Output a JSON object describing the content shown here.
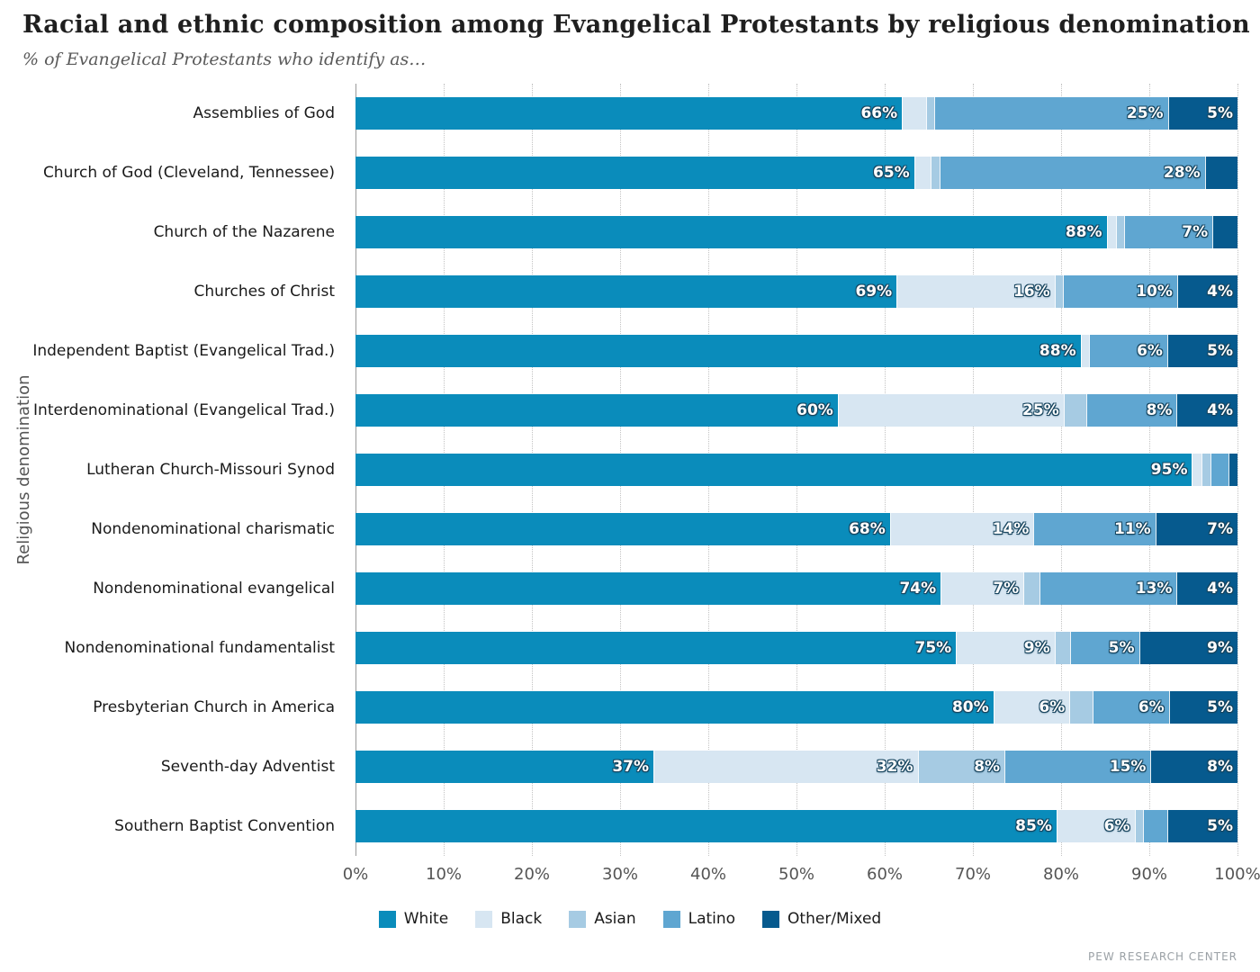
{
  "header": {
    "title": "Racial and ethnic composition among Evangelical Protestants by religious denomination (2",
    "subtitle": "% of Evangelical Protestants who identify as…"
  },
  "credit": "PEW RESEARCH CENTER",
  "chart_data": {
    "type": "bar",
    "orientation": "horizontal",
    "stacked": true,
    "title": "Racial and ethnic composition among Evangelical Protestants by religious denomination (2",
    "subtitle": "% of Evangelical Protestants who identify as…",
    "xlabel": "",
    "ylabel": "Religious denomination",
    "xlim": [
      0,
      100
    ],
    "x_tick_labels": [
      "0%",
      "10%",
      "20%",
      "30%",
      "40%",
      "50%",
      "60%",
      "70%",
      "80%",
      "90%",
      "100%"
    ],
    "grid": "vertical-dotted",
    "legend_position": "bottom",
    "categories": [
      "Assemblies of God",
      "Church of God (Cleveland, Tennessee)",
      "Church of the Nazarene",
      "Churches of Christ",
      "Independent Baptist (Evangelical Trad.)",
      "Interdenominational (Evangelical Trad.)",
      "Lutheran Church-Missouri Synod",
      "Nondenominational charismatic",
      "Nondenominational evangelical",
      "Nondenominational fundamentalist",
      "Presbyterian Church in America",
      "Seventh-day Adventist",
      "Southern Baptist Convention"
    ],
    "series": [
      {
        "name": "White",
        "color": "#0a8cbb",
        "values": [
          66,
          65,
          88,
          69,
          88,
          60,
          95,
          68,
          74,
          75,
          80,
          37,
          85
        ]
      },
      {
        "name": "Black",
        "color": "#d7e6f2",
        "values": [
          3,
          2,
          1,
          16,
          1,
          25,
          1,
          14,
          7,
          9,
          6,
          32,
          6
        ]
      },
      {
        "name": "Asian",
        "color": "#a6cbe3",
        "values": [
          1,
          1,
          1,
          1,
          0,
          3,
          1,
          0,
          2,
          2,
          3,
          8,
          1
        ]
      },
      {
        "name": "Latino",
        "color": "#5fa6d1",
        "values": [
          25,
          28,
          7,
          10,
          6,
          8,
          2,
          11,
          13,
          5,
          6,
          15,
          3
        ]
      },
      {
        "name": "Other/Mixed",
        "color": "#065a8e",
        "values": [
          5,
          4,
          3,
          4,
          5,
          4,
          1,
          7,
          4,
          9,
          5,
          8,
          5
        ]
      }
    ],
    "bar_labels": [
      [
        "66%",
        "",
        "",
        "25%",
        "5%"
      ],
      [
        "65%",
        "",
        "",
        "28%",
        ""
      ],
      [
        "88%",
        "",
        "",
        "7%",
        ""
      ],
      [
        "69%",
        "16%",
        "",
        "10%",
        "4%"
      ],
      [
        "88%",
        "",
        "",
        "6%",
        "5%"
      ],
      [
        "60%",
        "25%",
        "",
        "8%",
        "4%"
      ],
      [
        "95%",
        "",
        "",
        "",
        ""
      ],
      [
        "68%",
        "14%",
        "",
        "11%",
        "7%"
      ],
      [
        "74%",
        "7%",
        "",
        "13%",
        "4%"
      ],
      [
        "75%",
        "9%",
        "",
        "5%",
        "9%"
      ],
      [
        "80%",
        "6%",
        "",
        "6%",
        "5%"
      ],
      [
        "37%",
        "32%",
        "8%",
        "15%",
        "8%"
      ],
      [
        "85%",
        "6%",
        "",
        "",
        "5%"
      ]
    ]
  }
}
